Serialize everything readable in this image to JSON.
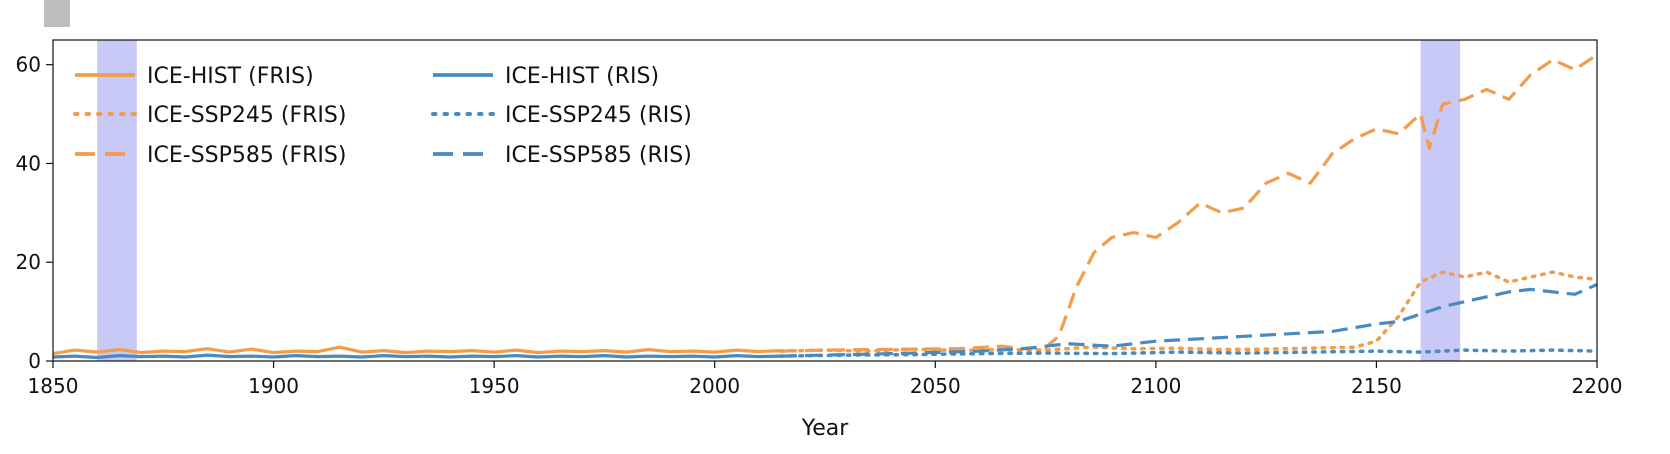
{
  "chart_data": {
    "type": "line",
    "title": "",
    "xlabel": "Year",
    "ylabel": "",
    "xlim": [
      1850,
      2200
    ],
    "ylim": [
      0,
      65
    ],
    "xticks": [
      1850,
      1900,
      1950,
      2000,
      2050,
      2100,
      2150,
      2200
    ],
    "yticks": [
      0,
      20,
      40,
      60
    ],
    "grid": false,
    "legend_position": "top-left",
    "highlight_bands": [
      {
        "x0": 1860,
        "x1": 1869,
        "color": "#c9c9f7"
      },
      {
        "x0": 2160,
        "x1": 2169,
        "color": "#c9c9f7"
      }
    ],
    "series": [
      {
        "name": "ICE-HIST (FRIS)",
        "color": "#f29d4a",
        "style": "solid",
        "x": [
          1850,
          1855,
          1860,
          1865,
          1870,
          1875,
          1880,
          1885,
          1890,
          1895,
          1900,
          1905,
          1910,
          1915,
          1920,
          1925,
          1930,
          1935,
          1940,
          1945,
          1950,
          1955,
          1960,
          1965,
          1970,
          1975,
          1980,
          1985,
          1990,
          1995,
          2000,
          2005,
          2010,
          2015
        ],
        "y": [
          1.5,
          2.2,
          1.8,
          2.3,
          1.7,
          2.0,
          1.9,
          2.5,
          1.8,
          2.4,
          1.7,
          2.0,
          1.9,
          2.8,
          1.8,
          2.1,
          1.7,
          2.0,
          1.9,
          2.1,
          1.8,
          2.2,
          1.7,
          2.0,
          1.9,
          2.1,
          1.8,
          2.3,
          1.9,
          2.0,
          1.8,
          2.2,
          1.9,
          2.1
        ]
      },
      {
        "name": "ICE-SSP245 (FRIS)",
        "color": "#f29d4a",
        "style": "dotted",
        "x": [
          2015,
          2025,
          2035,
          2045,
          2055,
          2065,
          2075,
          2085,
          2095,
          2105,
          2115,
          2125,
          2135,
          2145,
          2150,
          2155,
          2160,
          2165,
          2170,
          2175,
          2180,
          2185,
          2190,
          2195,
          2200
        ],
        "y": [
          2.0,
          2.2,
          2.0,
          2.4,
          2.1,
          2.3,
          2.2,
          2.8,
          2.5,
          2.6,
          2.3,
          2.4,
          2.6,
          2.8,
          4,
          9,
          16,
          18,
          17,
          18,
          16,
          17,
          18,
          17,
          16.5
        ]
      },
      {
        "name": "ICE-SSP585 (FRIS)",
        "color": "#f29d4a",
        "style": "dashed",
        "x": [
          2015,
          2025,
          2035,
          2045,
          2055,
          2065,
          2070,
          2075,
          2078,
          2082,
          2086,
          2090,
          2095,
          2100,
          2105,
          2110,
          2115,
          2120,
          2125,
          2130,
          2135,
          2140,
          2145,
          2150,
          2155,
          2160,
          2162,
          2165,
          2170,
          2175,
          2180,
          2185,
          2190,
          2195,
          2200
        ],
        "y": [
          2.0,
          2.2,
          2.3,
          2.4,
          2.5,
          3.0,
          2.5,
          2.8,
          5,
          15,
          22,
          25,
          26,
          25,
          28,
          32,
          30,
          31,
          36,
          38,
          36,
          42,
          45,
          47,
          46,
          50,
          43,
          52,
          53,
          55,
          53,
          58,
          61,
          59,
          62
        ]
      },
      {
        "name": "ICE-HIST (RIS)",
        "color": "#4a8bbf",
        "style": "solid",
        "x": [
          1850,
          1855,
          1860,
          1865,
          1870,
          1875,
          1880,
          1885,
          1890,
          1895,
          1900,
          1905,
          1910,
          1915,
          1920,
          1925,
          1930,
          1935,
          1940,
          1945,
          1950,
          1955,
          1960,
          1965,
          1970,
          1975,
          1980,
          1985,
          1990,
          1995,
          2000,
          2005,
          2010,
          2015
        ],
        "y": [
          0.8,
          1.0,
          0.7,
          1.1,
          0.9,
          1.0,
          0.8,
          1.2,
          0.9,
          1.0,
          0.8,
          1.1,
          0.9,
          1.0,
          0.8,
          1.1,
          0.9,
          1.0,
          0.8,
          1.0,
          0.9,
          1.1,
          0.8,
          1.0,
          0.9,
          1.1,
          0.8,
          1.0,
          0.9,
          1.0,
          0.8,
          1.1,
          0.9,
          1.0
        ]
      },
      {
        "name": "ICE-SSP245 (RIS)",
        "color": "#4a8bbf",
        "style": "dotted",
        "x": [
          2015,
          2030,
          2045,
          2060,
          2075,
          2090,
          2105,
          2120,
          2135,
          2150,
          2160,
          2170,
          2180,
          2190,
          2200
        ],
        "y": [
          1.0,
          1.2,
          1.3,
          1.5,
          1.6,
          1.5,
          1.8,
          1.6,
          1.8,
          2.0,
          1.8,
          2.2,
          2.0,
          2.2,
          2.0
        ]
      },
      {
        "name": "ICE-SSP585 (RIS)",
        "color": "#4a8bbf",
        "style": "dashed",
        "x": [
          2015,
          2030,
          2045,
          2060,
          2070,
          2080,
          2090,
          2100,
          2110,
          2120,
          2130,
          2140,
          2150,
          2155,
          2160,
          2165,
          2170,
          2175,
          2180,
          2185,
          2190,
          2195,
          2200
        ],
        "y": [
          1.0,
          1.3,
          1.6,
          2.0,
          2.5,
          3.5,
          3.0,
          4.0,
          4.5,
          5.0,
          5.5,
          6.0,
          7.5,
          8.0,
          9.5,
          11,
          12,
          13,
          14,
          14.5,
          14,
          13.5,
          15.5
        ]
      }
    ]
  }
}
